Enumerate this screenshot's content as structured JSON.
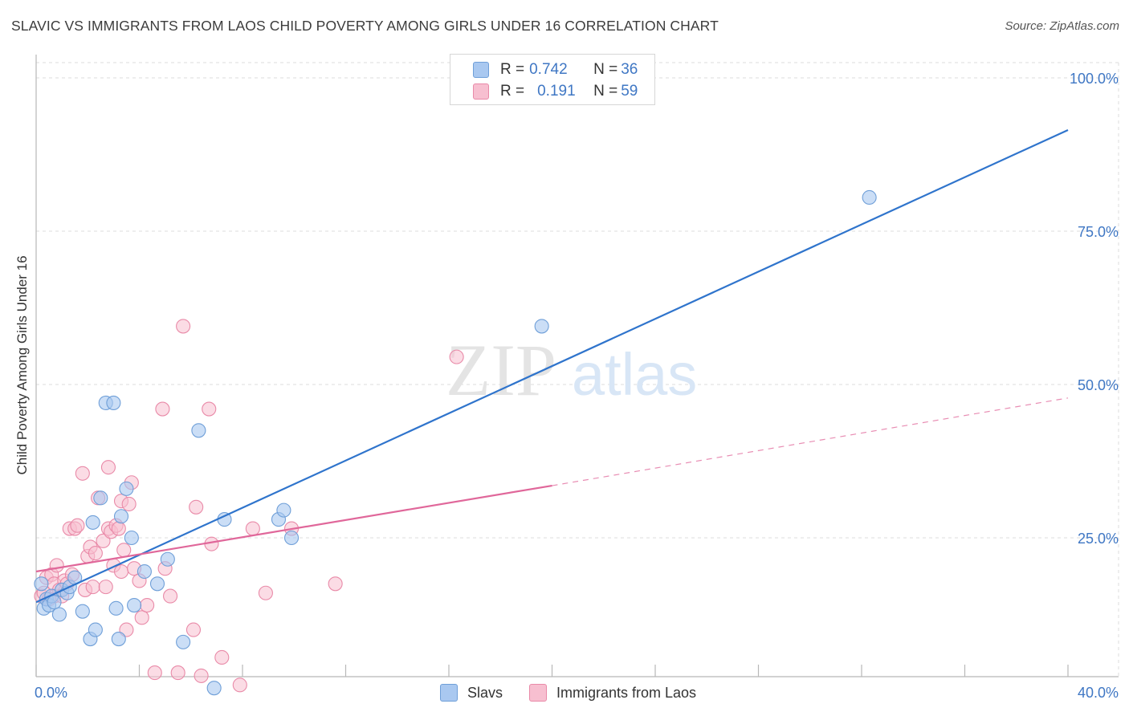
{
  "header": {
    "title": "SLAVIC VS IMMIGRANTS FROM LAOS CHILD POVERTY AMONG GIRLS UNDER 16 CORRELATION CHART",
    "source": "Source: ZipAtlas.com"
  },
  "watermark": {
    "zip": "ZIP",
    "atlas": "atlas"
  },
  "legend_top": {
    "rows": [
      {
        "r_label": "R = ",
        "r_value": "0.742",
        "n_label": "N = ",
        "n_value": "36"
      },
      {
        "r_label": "R = ",
        "r_value": "0.191",
        "n_label": "N = ",
        "n_value": "59"
      }
    ]
  },
  "legend_bottom": {
    "items": [
      "Slavs",
      "Immigrants from Laos"
    ]
  },
  "colors": {
    "slavs_fill": "#a9c8f0",
    "slavs_stroke": "#6f9fd8",
    "slavs_line": "#2f74cc",
    "laos_fill": "#f7bfd0",
    "laos_stroke": "#e98aa8",
    "laos_line": "#e0679a",
    "axis_label": "#3f77c4",
    "grid": "#dddddd"
  },
  "chart_data": {
    "type": "scatter",
    "title": "SLAVIC VS IMMIGRANTS FROM LAOS CHILD POVERTY AMONG GIRLS UNDER 16 CORRELATION CHART",
    "xlabel": "",
    "ylabel": "Child Poverty Among Girls Under 16",
    "xlim": [
      0,
      40
    ],
    "ylim": [
      0,
      100
    ],
    "x_tick_labels": [
      "0.0%",
      "40.0%"
    ],
    "y_tick_labels": [
      "25.0%",
      "50.0%",
      "75.0%",
      "100.0%"
    ],
    "y_ticks": [
      25,
      50,
      75,
      100
    ],
    "grid": true,
    "legend_position": "top-center",
    "series": [
      {
        "name": "Slavs",
        "r": 0.742,
        "n": 36,
        "trend": {
          "x": [
            0,
            40
          ],
          "y": [
            14.5,
            91.5
          ]
        },
        "points": [
          [
            0.2,
            17.5
          ],
          [
            0.3,
            13.5
          ],
          [
            0.4,
            15.0
          ],
          [
            0.5,
            14.0
          ],
          [
            0.6,
            15.5
          ],
          [
            0.7,
            14.5
          ],
          [
            0.9,
            12.5
          ],
          [
            1.0,
            16.5
          ],
          [
            1.2,
            16.0
          ],
          [
            1.3,
            17.0
          ],
          [
            1.5,
            18.5
          ],
          [
            1.8,
            13.0
          ],
          [
            2.1,
            8.5
          ],
          [
            2.3,
            10.0
          ],
          [
            2.2,
            27.5
          ],
          [
            2.5,
            31.5
          ],
          [
            2.7,
            47.0
          ],
          [
            3.0,
            47.0
          ],
          [
            3.1,
            13.5
          ],
          [
            3.2,
            8.5
          ],
          [
            3.3,
            28.5
          ],
          [
            3.5,
            33.0
          ],
          [
            3.7,
            25.0
          ],
          [
            3.8,
            14.0
          ],
          [
            4.2,
            19.5
          ],
          [
            4.7,
            17.5
          ],
          [
            5.1,
            21.5
          ],
          [
            5.7,
            8.0
          ],
          [
            6.3,
            42.5
          ],
          [
            6.9,
            0.5
          ],
          [
            7.3,
            28.0
          ],
          [
            9.4,
            28.0
          ],
          [
            9.6,
            29.5
          ],
          [
            9.9,
            25.0
          ],
          [
            19.6,
            59.5
          ],
          [
            32.3,
            80.5
          ]
        ]
      },
      {
        "name": "Immigrants from Laos",
        "r": 0.191,
        "n": 59,
        "trend": {
          "x": [
            0,
            20
          ],
          "y": [
            19.5,
            33.5
          ]
        },
        "trend_dashed": {
          "x": [
            20,
            40
          ],
          "y": [
            33.5,
            47.8
          ]
        },
        "points": [
          [
            0.2,
            15.5
          ],
          [
            0.4,
            18.5
          ],
          [
            0.6,
            19.0
          ],
          [
            0.7,
            15.5
          ],
          [
            0.7,
            17.5
          ],
          [
            0.8,
            20.5
          ],
          [
            0.9,
            16.5
          ],
          [
            1.0,
            15.5
          ],
          [
            1.1,
            18.0
          ],
          [
            1.2,
            17.5
          ],
          [
            1.3,
            26.5
          ],
          [
            1.4,
            19.0
          ],
          [
            1.5,
            26.5
          ],
          [
            1.6,
            27.0
          ],
          [
            1.8,
            35.5
          ],
          [
            1.9,
            16.5
          ],
          [
            2.0,
            22.0
          ],
          [
            2.1,
            23.5
          ],
          [
            2.2,
            17.0
          ],
          [
            2.3,
            22.5
          ],
          [
            2.4,
            31.5
          ],
          [
            2.6,
            24.5
          ],
          [
            2.7,
            17.0
          ],
          [
            2.8,
            26.5
          ],
          [
            2.8,
            36.5
          ],
          [
            2.9,
            26.0
          ],
          [
            3.0,
            20.5
          ],
          [
            3.1,
            27.0
          ],
          [
            3.2,
            26.5
          ],
          [
            3.3,
            31.0
          ],
          [
            3.3,
            19.5
          ],
          [
            3.4,
            23.0
          ],
          [
            3.5,
            10.0
          ],
          [
            3.6,
            30.5
          ],
          [
            3.7,
            34.0
          ],
          [
            3.8,
            20.0
          ],
          [
            4.0,
            18.0
          ],
          [
            4.1,
            12.0
          ],
          [
            4.3,
            14.0
          ],
          [
            4.6,
            3.0
          ],
          [
            4.9,
            46.0
          ],
          [
            5.0,
            20.0
          ],
          [
            5.2,
            15.5
          ],
          [
            5.5,
            3.0
          ],
          [
            5.7,
            59.5
          ],
          [
            6.1,
            10.0
          ],
          [
            6.2,
            30.0
          ],
          [
            6.4,
            2.5
          ],
          [
            6.7,
            46.0
          ],
          [
            6.8,
            24.0
          ],
          [
            7.2,
            5.5
          ],
          [
            7.9,
            1.0
          ],
          [
            8.4,
            26.5
          ],
          [
            8.9,
            16.0
          ],
          [
            9.9,
            26.5
          ],
          [
            11.6,
            17.5
          ],
          [
            16.3,
            54.5
          ],
          [
            0.3,
            16.0
          ],
          [
            0.5,
            15.0
          ]
        ]
      }
    ]
  }
}
